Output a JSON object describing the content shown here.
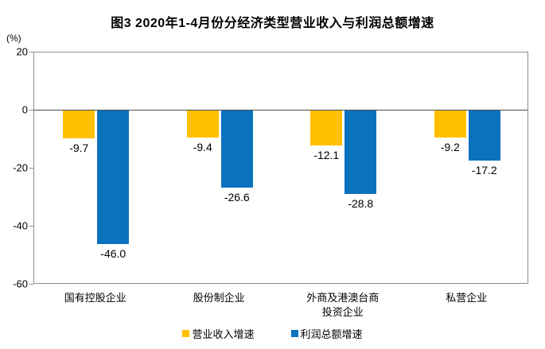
{
  "title": "图3 2020年1-4月份分经济类型营业收入与利润总额增速",
  "y_axis": {
    "unit_label": "(%)",
    "ticks": [
      20,
      0,
      -20,
      -40,
      -60
    ]
  },
  "legend": {
    "items": [
      {
        "key": "revenue",
        "label": "营业收入增速",
        "color": "#FFC000"
      },
      {
        "key": "profit",
        "label": "利润总额增速",
        "color": "#0B72BE"
      }
    ]
  },
  "categories_display": [
    "国有控股企业",
    "股份制企业",
    "外商及港澳台商\n投资企业",
    "私营企业"
  ],
  "colors": {
    "revenue_bar": "#FFC000",
    "profit_bar": "#0B72BE",
    "plot_border": "#8c8c8c",
    "zero_line": "#4d4d4d",
    "text": "#000000"
  },
  "chart_data": {
    "type": "bar",
    "title": "图3 2020年1-4月份分经济类型营业收入与利润总额增速",
    "categories": [
      "国有控股企业",
      "股份制企业",
      "外商及港澳台商投资企业",
      "私营企业"
    ],
    "series": [
      {
        "key": "revenue",
        "name": "营业收入增速",
        "color": "#FFC000",
        "values": [
          -9.7,
          -9.4,
          -12.1,
          -9.2
        ]
      },
      {
        "key": "profit",
        "name": "利润总额增速",
        "color": "#0B72BE",
        "values": [
          -46.0,
          -26.6,
          -28.8,
          -17.2
        ]
      }
    ],
    "xlabel": "",
    "ylabel": "(%)",
    "ylim": [
      -60,
      20
    ],
    "yticks": [
      20,
      0,
      -20,
      -40,
      -60
    ],
    "grid": false,
    "data_labels": true,
    "legend_position": "bottom"
  }
}
